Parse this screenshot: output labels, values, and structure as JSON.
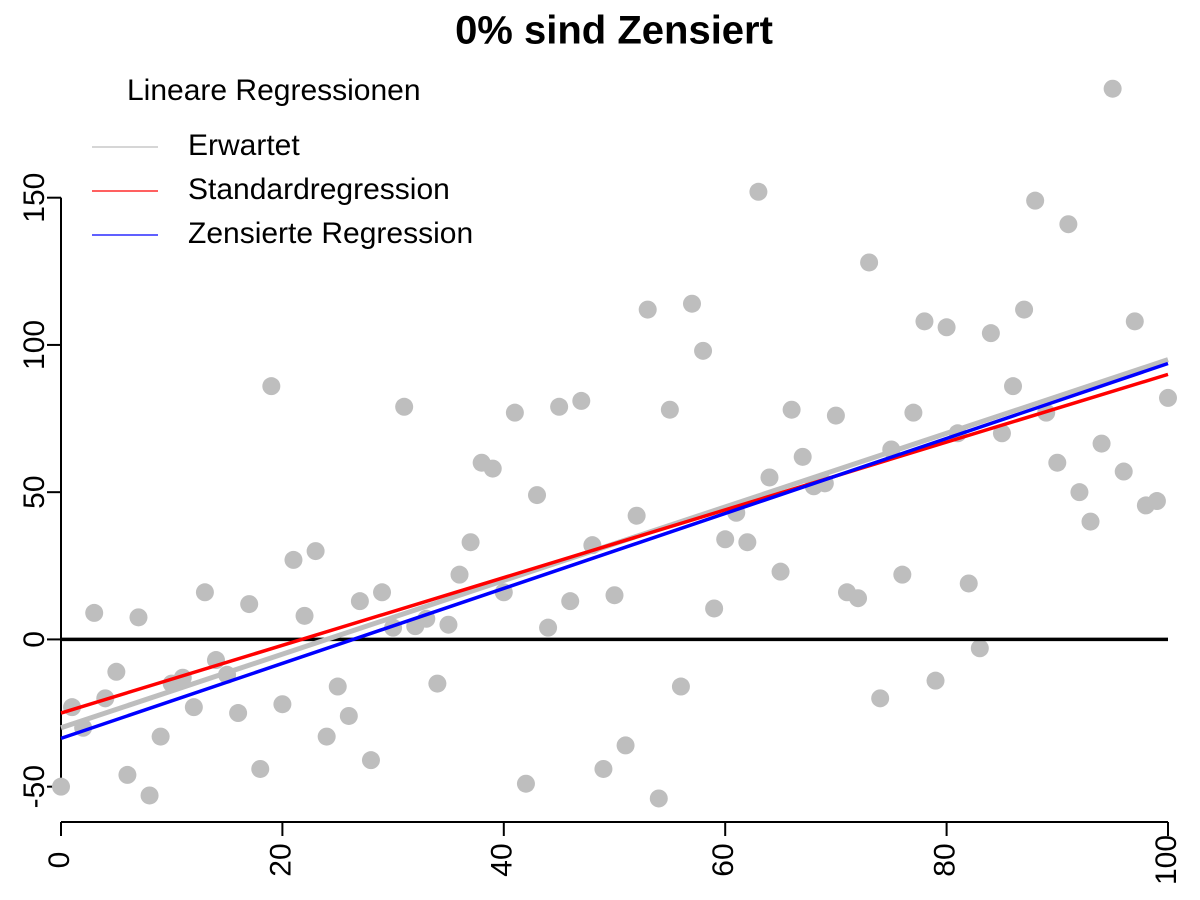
{
  "chart_data": {
    "type": "scatter",
    "title": "0% sind Zensiert",
    "legend_title": "Lineare Regressionen",
    "legend": "topleft",
    "xlim": [
      0,
      100
    ],
    "ylim": [
      -62,
      192
    ],
    "xticks": [
      0,
      20,
      40,
      60,
      80,
      100
    ],
    "yticks": [
      -50,
      0,
      50,
      100,
      150
    ],
    "hline": 0,
    "points": {
      "color": "#bebebe",
      "x": [
        0,
        1,
        2,
        3,
        4,
        5,
        6,
        7,
        8,
        9,
        10,
        11,
        12,
        13,
        14,
        15,
        16,
        17,
        18,
        19,
        20,
        21,
        22,
        23,
        24,
        25,
        26,
        27,
        28,
        29,
        30,
        31,
        32,
        33,
        34,
        35,
        36,
        37,
        38,
        39,
        40,
        41,
        42,
        43,
        44,
        45,
        46,
        47,
        48,
        49,
        50,
        51,
        52,
        53,
        54,
        55,
        56,
        57,
        58,
        59,
        60,
        61,
        62,
        63,
        64,
        65,
        66,
        67,
        68,
        69,
        70,
        71,
        72,
        73,
        74,
        75,
        76,
        77,
        78,
        79,
        80,
        81,
        82,
        83,
        84,
        85,
        86,
        87,
        88,
        89,
        90,
        91,
        92,
        93,
        94,
        95,
        96,
        97,
        98,
        99,
        100
      ],
      "values": [
        -50,
        -23,
        -30,
        9,
        -20,
        -11,
        -46,
        7.5,
        -53,
        -33,
        -15,
        -13,
        -23,
        16,
        -7,
        -12,
        -25,
        12,
        -44,
        86,
        -22,
        27,
        8,
        30,
        -33,
        -16,
        -26,
        13,
        -41,
        16,
        4,
        79,
        4.5,
        7,
        -15,
        5,
        22,
        33,
        60,
        58,
        16,
        77,
        -49,
        49,
        4,
        79,
        13,
        81,
        32,
        -44,
        15,
        -36,
        42,
        112,
        -54,
        78,
        -16,
        114,
        98,
        10.5,
        34,
        43,
        33,
        152,
        55,
        23,
        78,
        62,
        52,
        53,
        76,
        16,
        14,
        128,
        -20,
        64.5,
        22,
        77,
        108,
        -14,
        106,
        70,
        19,
        -3,
        104,
        70,
        86,
        112,
        149,
        77,
        60,
        141,
        50,
        40,
        66.5,
        187,
        57,
        108,
        45.5,
        47,
        82
      ]
    },
    "series": [
      {
        "name": "Erwartet",
        "color": "#bebebe",
        "x": [
          0,
          100
        ],
        "values": [
          -30,
          95
        ]
      },
      {
        "name": "Standardregression",
        "color": "#ff0000",
        "x": [
          0,
          100
        ],
        "values": [
          -25,
          90
        ]
      },
      {
        "name": "Zensierte Regression",
        "color": "#0000ff",
        "x": [
          0,
          100
        ],
        "values": [
          -33.6,
          93.7
        ]
      }
    ]
  }
}
